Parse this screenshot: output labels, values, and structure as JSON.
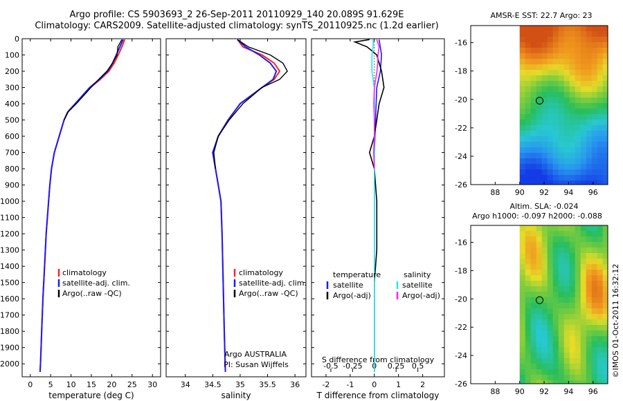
{
  "header": {
    "line1": "Argo profile: CS 5903693_2 26-Sep-2011 20110929_140 20.089S 91.629E",
    "line2": "Climatology: CARS2009. Satellite-adjusted climatology: synTS_20110925.nc (1.2d earlier)"
  },
  "colors": {
    "clim": "#ff2020",
    "sat": "#1a1aff",
    "argo": "#000000",
    "sal_sat": "#20e8e8",
    "sal_argo": "#ff20ff"
  },
  "chart_data": [
    {
      "name": "temperature-profile",
      "type": "line",
      "xlabel": "temperature (deg C)",
      "xlim": [
        -2,
        32
      ],
      "xticks": [
        0,
        5,
        10,
        15,
        20,
        25,
        30
      ],
      "ylim": [
        0,
        2080
      ],
      "yticks": [
        0,
        100,
        200,
        300,
        400,
        500,
        600,
        700,
        800,
        900,
        1000,
        1100,
        1200,
        1300,
        1400,
        1500,
        1600,
        1700,
        1800,
        1900,
        2000
      ],
      "legend": [
        "climatology",
        "satellite-adj. clim.",
        "Argo(..raw -QC)"
      ],
      "series": [
        {
          "name": "climatology",
          "depth": [
            5,
            50,
            100,
            150,
            200,
            250,
            300,
            400,
            450,
            500,
            600,
            700,
            800,
            900,
            1000,
            1200,
            1400,
            1600,
            1800,
            2000,
            2050
          ],
          "values": [
            23.2,
            22.5,
            21.6,
            20.6,
            19.3,
            17.2,
            14.8,
            11.1,
            9.2,
            8.3,
            7.1,
            5.9,
            5.2,
            4.8,
            4.5,
            3.9,
            3.5,
            3.1,
            2.8,
            2.5,
            2.4
          ]
        },
        {
          "name": "satellite-adj. clim.",
          "depth": [
            5,
            50,
            100,
            150,
            200,
            250,
            300,
            400,
            450,
            500,
            600,
            700,
            800,
            900,
            1000,
            1200,
            1400,
            1600,
            1800,
            2000,
            2050
          ],
          "values": [
            22.8,
            22.0,
            21.1,
            20.2,
            19.0,
            17.0,
            14.6,
            11.0,
            9.2,
            8.3,
            7.1,
            5.9,
            5.2,
            4.8,
            4.5,
            3.9,
            3.5,
            3.1,
            2.8,
            2.5,
            2.4
          ]
        },
        {
          "name": "Argo(..raw -QC)",
          "depth": [
            5,
            50,
            100,
            150,
            200,
            250,
            300,
            400,
            450,
            500
          ],
          "values": [
            22.5,
            21.5,
            21.3,
            20.2,
            18.8,
            16.8,
            14.9,
            11.3,
            9.3,
            8.3
          ]
        }
      ]
    },
    {
      "name": "salinity-profile",
      "type": "line",
      "xlabel": "salinity",
      "xlim": [
        33.65,
        36.2
      ],
      "xticks": [
        34,
        34.5,
        35,
        35.5,
        36
      ],
      "ylim": [
        0,
        2080
      ],
      "legend": [
        "climatology",
        "satellite-adj. clim.",
        "Argo(..raw -QC)"
      ],
      "annotations": [
        "Argo AUSTRALIA",
        "PI: Susan Wijffels"
      ],
      "series": [
        {
          "name": "climatology",
          "depth": [
            5,
            50,
            100,
            150,
            200,
            250,
            300,
            400,
            500,
            600,
            700,
            800,
            900,
            1000,
            1200,
            1500,
            1800,
            2050
          ],
          "values": [
            34.95,
            35.05,
            35.4,
            35.62,
            35.72,
            35.62,
            35.4,
            35.0,
            34.78,
            34.6,
            34.5,
            34.55,
            34.6,
            34.65,
            34.67,
            34.69,
            34.71,
            34.73
          ]
        },
        {
          "name": "satellite-adj. clim.",
          "depth": [
            5,
            50,
            100,
            150,
            200,
            250,
            300,
            400,
            500,
            600,
            700,
            800,
            900,
            1000,
            1200,
            1500,
            1800,
            2050
          ],
          "values": [
            34.95,
            35.1,
            35.35,
            35.55,
            35.66,
            35.6,
            35.4,
            35.0,
            34.78,
            34.6,
            34.5,
            34.55,
            34.6,
            34.65,
            34.67,
            34.69,
            34.71,
            34.73
          ]
        },
        {
          "name": "Argo(..raw -QC)",
          "depth": [
            5,
            50,
            100,
            150,
            200,
            250,
            300,
            400,
            500,
            600,
            700,
            800
          ],
          "values": [
            34.95,
            35.15,
            35.55,
            35.78,
            35.86,
            35.72,
            35.4,
            35.05,
            34.8,
            34.6,
            34.52,
            34.55
          ]
        }
      ]
    },
    {
      "name": "difference-profile",
      "type": "line",
      "xlabel": "T difference from climatology",
      "top_label": "S difference from climatology",
      "xlim": [
        -2.6,
        2.9
      ],
      "xticks": [
        -2,
        -1,
        0,
        1,
        2
      ],
      "top_ticks": [
        "-0.5",
        "-0.25",
        "0",
        "0.25",
        "0.5"
      ],
      "ylim": [
        0,
        2080
      ],
      "legend_temperature": {
        "heading": "temperature",
        "items": [
          "satellite",
          "Argo(-adj)"
        ]
      },
      "legend_salinity": {
        "heading": "salinity",
        "items": [
          "satellite",
          "Argo(-adj)"
        ]
      },
      "series": [
        {
          "name": "temperature satellite",
          "depth": [
            5,
            100,
            200,
            300,
            500,
            700,
            1000,
            1500,
            2050
          ],
          "values": [
            0.2,
            0.3,
            0.25,
            0.1,
            0.05,
            0.0,
            0.0,
            0.0,
            0.0
          ]
        },
        {
          "name": "temperature Argo(-adj)",
          "depth": [
            5,
            20,
            50,
            100,
            200,
            300,
            400,
            500,
            600,
            700,
            800,
            1000,
            1300,
            1500,
            2050
          ],
          "values": [
            -0.2,
            -0.8,
            -0.3,
            0.1,
            0.3,
            0.4,
            0.2,
            0.1,
            0.0,
            -0.2,
            0.0,
            0.1,
            0.1,
            0.0,
            0.0
          ]
        },
        {
          "name": "salinity satellite",
          "depth": [
            5,
            50,
            100,
            200,
            300,
            400,
            600,
            1000,
            2050
          ],
          "values": [
            -0.05,
            -0.05,
            -0.1,
            -0.1,
            0.0,
            0.0,
            0.0,
            0.0,
            0.0
          ]
        },
        {
          "name": "salinity Argo(-adj)",
          "depth": [
            5,
            50,
            100,
            150,
            200,
            300,
            400,
            500,
            600,
            700,
            800
          ],
          "values": [
            0.1,
            0.2,
            0.15,
            0.14,
            0.11,
            0.0,
            -0.02,
            0.0,
            0.0,
            -0.03,
            0.0
          ]
        }
      ]
    },
    {
      "name": "sst-map",
      "type": "heatmap",
      "title": "AMSR-E SST: 22.7 Argo: 23",
      "xticks": [
        "88",
        "90",
        "92",
        "94",
        "96"
      ],
      "yticks": [
        "-16",
        "-18",
        "-20",
        "-22",
        "-24",
        "-26"
      ],
      "xlim": [
        86,
        97.2
      ],
      "ylim": [
        -26,
        -14.8
      ],
      "data_lon_min": 90,
      "argo_position": {
        "lon": 91.629,
        "lat": -20.089
      }
    },
    {
      "name": "sla-map",
      "type": "heatmap",
      "title": "Altim. SLA: -0.024",
      "subtitle": "Argo h1000: -0.097 h2000: -0.088",
      "xticks": [
        "88",
        "90",
        "92",
        "94",
        "96"
      ],
      "yticks": [
        "-16",
        "-18",
        "-20",
        "-22",
        "-24",
        "-26"
      ],
      "xlim": [
        86,
        97.2
      ],
      "ylim": [
        -26,
        -14.8
      ],
      "data_lon_min": 90,
      "argo_position": {
        "lon": 91.629,
        "lat": -20.089
      }
    }
  ],
  "footer": {
    "credit": "©IMOS 01-Oct-2011 16:32:12"
  }
}
